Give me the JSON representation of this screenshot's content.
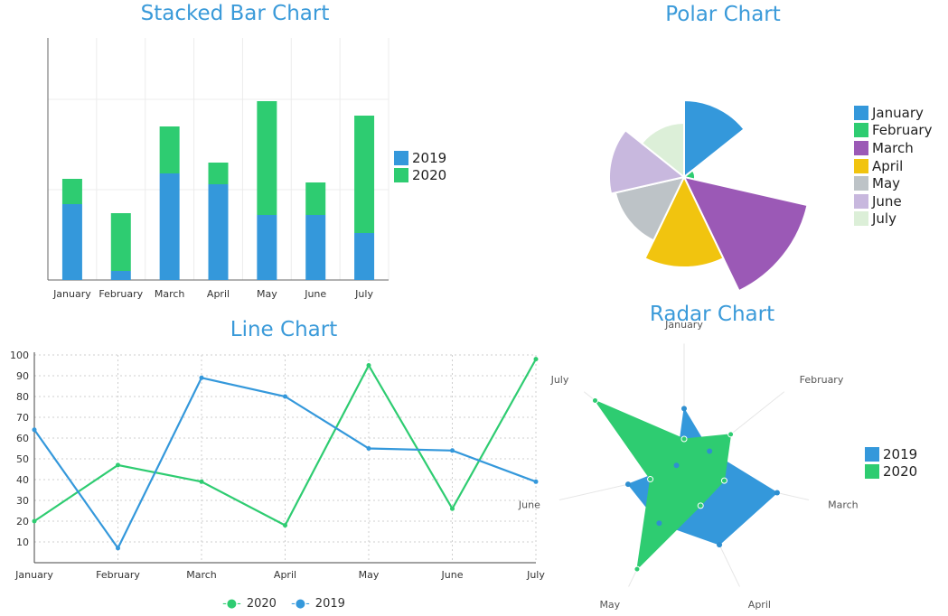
{
  "chart_data": [
    {
      "id": "stacked",
      "type": "bar",
      "stacked": true,
      "title": "Stacked Bar Chart",
      "categories": [
        "January",
        "February",
        "March",
        "April",
        "May",
        "June",
        "July"
      ],
      "series": [
        {
          "name": "2019",
          "color": "#3498db",
          "values": [
            42,
            5,
            59,
            53,
            36,
            36,
            26
          ]
        },
        {
          "name": "2020",
          "color": "#2ecc71",
          "values": [
            14,
            32,
            26,
            12,
            63,
            18,
            65
          ]
        }
      ],
      "ylim": [
        0,
        134
      ],
      "grid": true,
      "legend": "right"
    },
    {
      "id": "polar",
      "type": "pie",
      "subtype": "polar-area",
      "title": "Polar Chart",
      "categories": [
        "January",
        "February",
        "March",
        "April",
        "May",
        "June",
        "July"
      ],
      "values": [
        85,
        12,
        140,
        100,
        78,
        83,
        60
      ],
      "colors": [
        "#3498db",
        "#2ecc71",
        "#9b59b6",
        "#f1c40f",
        "#bdc3c7",
        "#c8b8de",
        "#dcefd8"
      ],
      "legend": "right"
    },
    {
      "id": "line",
      "type": "line",
      "title": "Line Chart",
      "x": [
        "January",
        "February",
        "March",
        "April",
        "May",
        "June",
        "July"
      ],
      "series": [
        {
          "name": "2020",
          "color": "#2ecc71",
          "values": [
            20,
            47,
            39,
            18,
            95,
            26,
            98
          ]
        },
        {
          "name": "2019",
          "color": "#3498db",
          "values": [
            64,
            7,
            89,
            80,
            55,
            54,
            39
          ]
        }
      ],
      "ylim": [
        0,
        100
      ],
      "yticks": [
        10,
        20,
        30,
        40,
        50,
        60,
        70,
        80,
        90,
        100
      ],
      "grid": true,
      "legend": "bottom"
    },
    {
      "id": "radar",
      "type": "radar",
      "title": "Radar Chart",
      "categories": [
        "January",
        "February",
        "March",
        "April",
        "May",
        "June",
        "July"
      ],
      "series": [
        {
          "name": "2019",
          "color": "#3498db",
          "values": [
            58,
            30,
            88,
            75,
            53,
            53,
            9
          ]
        },
        {
          "name": "2020",
          "color": "#2ecc71",
          "values": [
            30,
            55,
            38,
            35,
            100,
            32,
            105
          ]
        }
      ],
      "rmax": 100,
      "legend": "right"
    }
  ]
}
